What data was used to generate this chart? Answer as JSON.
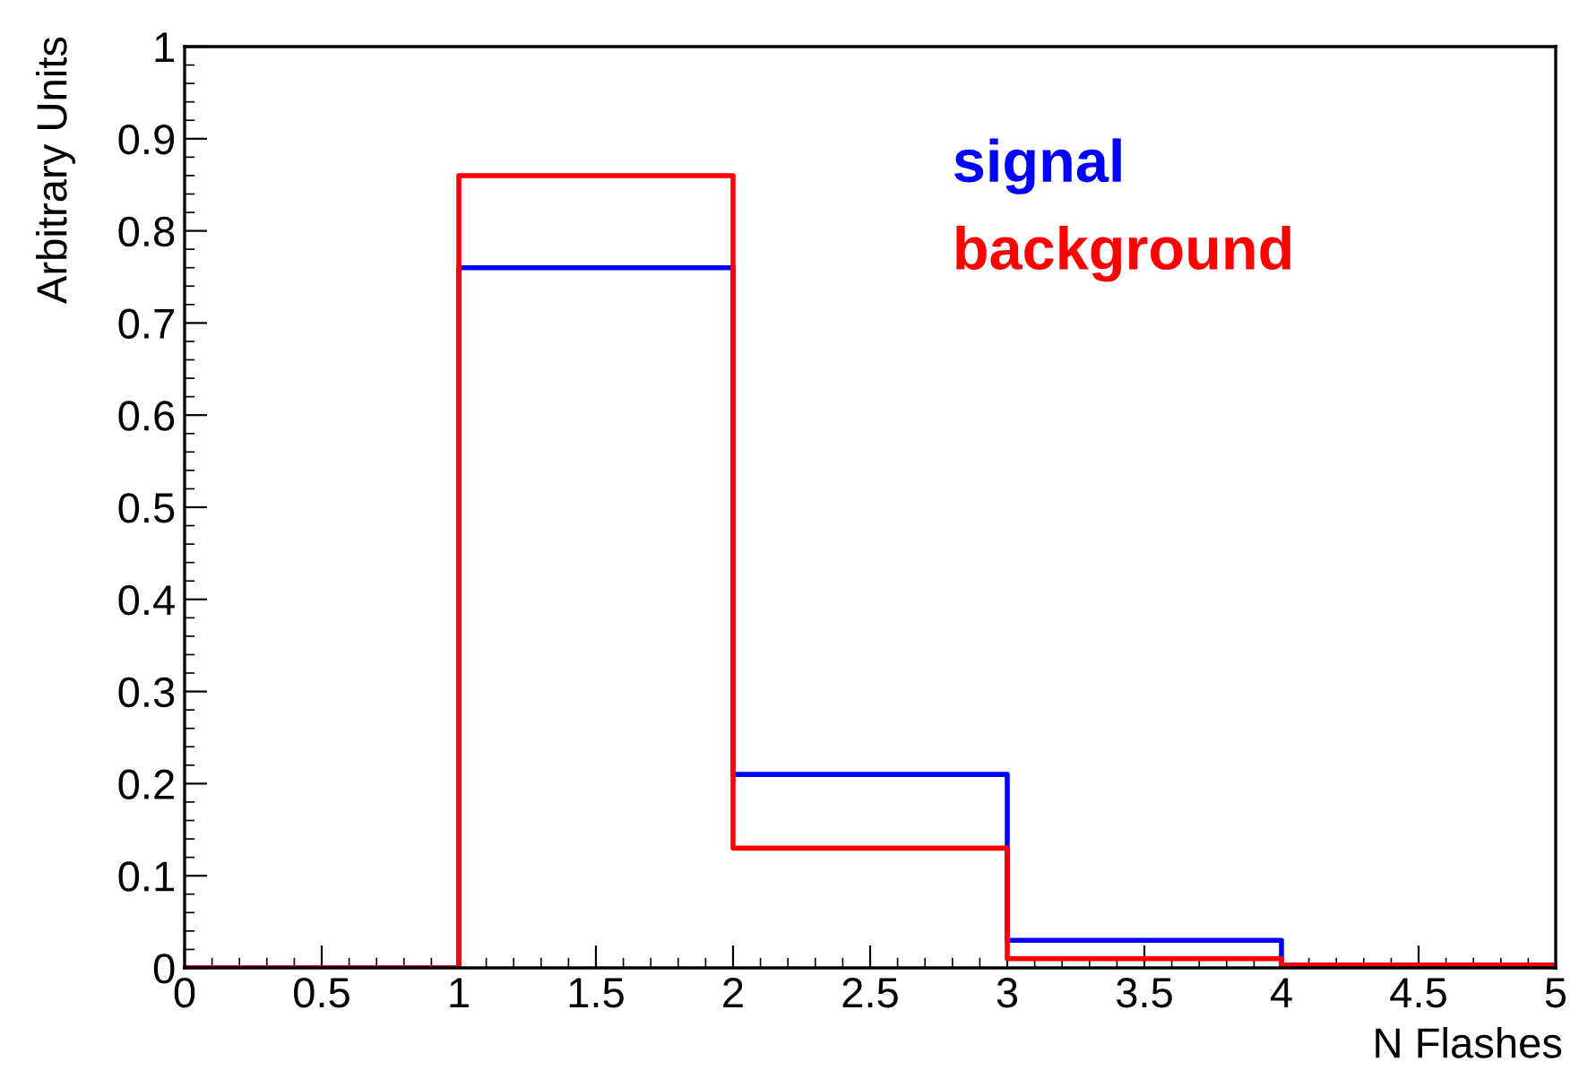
{
  "chart_data": {
    "type": "histogram",
    "xlabel": "N Flashes",
    "ylabel": "Arbitrary Units",
    "bins": [
      0,
      1,
      2,
      3,
      4,
      5
    ],
    "series": [
      {
        "name": "signal",
        "color": "#0000ff",
        "values": [
          0,
          0.76,
          0.21,
          0.03,
          0.003
        ]
      },
      {
        "name": "background",
        "color": "#ff0000",
        "values": [
          0,
          0.86,
          0.13,
          0.01,
          0.003
        ]
      }
    ],
    "xlim": [
      0,
      5
    ],
    "ylim": [
      0,
      1
    ],
    "xticks": [
      0,
      0.5,
      1,
      1.5,
      2,
      2.5,
      3,
      3.5,
      4,
      4.5,
      5
    ],
    "yticks": [
      0,
      0.1,
      0.2,
      0.3,
      0.4,
      0.5,
      0.6,
      0.7,
      0.8,
      0.9,
      1
    ],
    "legend": "top right",
    "grid": false
  }
}
